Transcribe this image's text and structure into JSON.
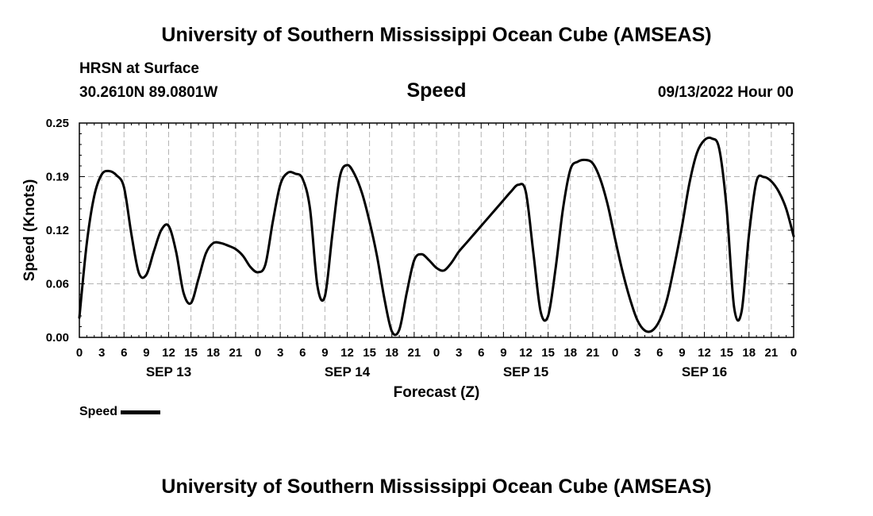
{
  "header": {
    "title": "University of Southern Mississippi Ocean Cube (AMSEAS)",
    "location": "HRSN at Surface",
    "coordinates": "30.2610N  89.0801W",
    "chart_title": "Speed",
    "run_time": "09/13/2022 Hour 00"
  },
  "footer": {
    "title": "University of Southern Mississippi Ocean Cube (AMSEAS)"
  },
  "legend": {
    "label": "Speed"
  },
  "colors": {
    "line": "#000000",
    "grid": "#b4b4b4",
    "background": "#ffffff"
  },
  "chart_data": {
    "type": "line",
    "title": "Speed",
    "xlabel": "Forecast (Z)",
    "ylabel": "Speed (Knots)",
    "xlim": [
      0,
      96
    ],
    "ylim": [
      0,
      0.25
    ],
    "yticks": [
      "0.00",
      "0.06",
      "0.12",
      "0.19",
      "0.25"
    ],
    "ytick_values": [
      0,
      0.0625,
      0.125,
      0.1875,
      0.25
    ],
    "xtick_labels": [
      "0",
      "3",
      "6",
      "9",
      "12",
      "15",
      "18",
      "21",
      "0",
      "3",
      "6",
      "9",
      "12",
      "15",
      "18",
      "21",
      "0",
      "3",
      "6",
      "9",
      "12",
      "15",
      "18",
      "21",
      "0",
      "3",
      "6",
      "9",
      "12",
      "15",
      "18",
      "21",
      "0"
    ],
    "day_labels": [
      {
        "label": "SEP 13",
        "hour": 12
      },
      {
        "label": "SEP 14",
        "hour": 36
      },
      {
        "label": "SEP 15",
        "hour": 60
      },
      {
        "label": "SEP 16",
        "hour": 84
      }
    ],
    "grid": true,
    "series": [
      {
        "name": "Speed",
        "x": [
          0,
          1,
          2,
          3,
          4,
          5,
          6,
          7,
          8,
          9,
          10,
          11,
          12,
          13,
          14,
          15,
          16,
          17,
          18,
          19,
          20,
          21,
          22,
          23,
          24,
          25,
          26,
          27,
          28,
          29,
          30,
          31,
          32,
          33,
          34,
          35,
          36,
          37,
          38,
          39,
          40,
          41,
          42,
          43,
          44,
          45,
          46,
          47,
          48,
          49,
          50,
          51,
          52,
          53,
          54,
          55,
          56,
          57,
          58,
          59,
          60,
          61,
          62,
          63,
          64,
          65,
          66,
          67,
          68,
          69,
          70,
          71,
          72,
          73,
          74,
          75,
          76,
          77,
          78,
          79,
          80,
          81,
          82,
          83,
          84,
          85,
          86,
          87,
          88,
          89,
          90,
          91,
          92,
          93,
          94,
          95,
          96
        ],
        "values": [
          0.023,
          0.11,
          0.165,
          0.19,
          0.194,
          0.189,
          0.175,
          0.12,
          0.075,
          0.073,
          0.1,
          0.125,
          0.13,
          0.1,
          0.052,
          0.04,
          0.068,
          0.098,
          0.11,
          0.11,
          0.107,
          0.103,
          0.095,
          0.082,
          0.076,
          0.085,
          0.135,
          0.178,
          0.192,
          0.191,
          0.185,
          0.15,
          0.06,
          0.048,
          0.12,
          0.187,
          0.201,
          0.19,
          0.168,
          0.135,
          0.095,
          0.045,
          0.007,
          0.009,
          0.052,
          0.09,
          0.097,
          0.09,
          0.081,
          0.078,
          0.087,
          0.1,
          0.11,
          0.12,
          0.13,
          0.14,
          0.15,
          0.16,
          0.17,
          0.178,
          0.17,
          0.1,
          0.03,
          0.025,
          0.08,
          0.15,
          0.196,
          0.205,
          0.207,
          0.203,
          0.185,
          0.155,
          0.115,
          0.077,
          0.045,
          0.02,
          0.008,
          0.008,
          0.02,
          0.045,
          0.085,
          0.13,
          0.18,
          0.215,
          0.23,
          0.232,
          0.22,
          0.15,
          0.035,
          0.03,
          0.12,
          0.182,
          0.187,
          0.182,
          0.17,
          0.15,
          0.118
        ]
      }
    ]
  }
}
